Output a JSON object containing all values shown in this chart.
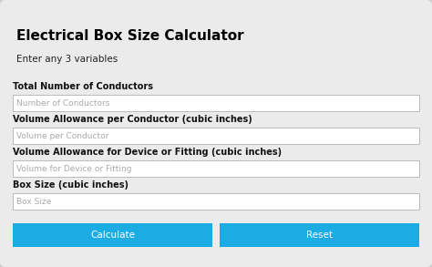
{
  "title": "Electrical Box Size Calculator",
  "subtitle": "Enter any 3 variables",
  "fields": [
    {
      "label": "Total Number of Conductors",
      "placeholder": "Number of Conductors"
    },
    {
      "label": "Volume Allowance per Conductor (cubic inches)",
      "placeholder": "Volume per Conductor"
    },
    {
      "label": "Volume Allowance for Device or Fitting (cubic inches)",
      "placeholder": "Volume for Device or Fitting"
    },
    {
      "label": "Box Size (cubic inches)",
      "placeholder": "Box Size"
    }
  ],
  "buttons": [
    {
      "text": "Calculate",
      "color": "#1AACE3"
    },
    {
      "text": "Reset",
      "color": "#1AACE3"
    }
  ],
  "bg_color": "#CCCCCC",
  "panel_bg": "#EBEBEB",
  "input_bg": "#FFFFFF",
  "input_border": "#BBBBBB",
  "label_color": "#111111",
  "placeholder_color": "#AAAAAA",
  "title_color": "#000000",
  "subtitle_color": "#222222",
  "button_text_color": "#FFFFFF",
  "title_fontsize": 11,
  "subtitle_fontsize": 7.5,
  "label_fontsize": 7,
  "placeholder_fontsize": 6.5,
  "button_fontsize": 7.5
}
